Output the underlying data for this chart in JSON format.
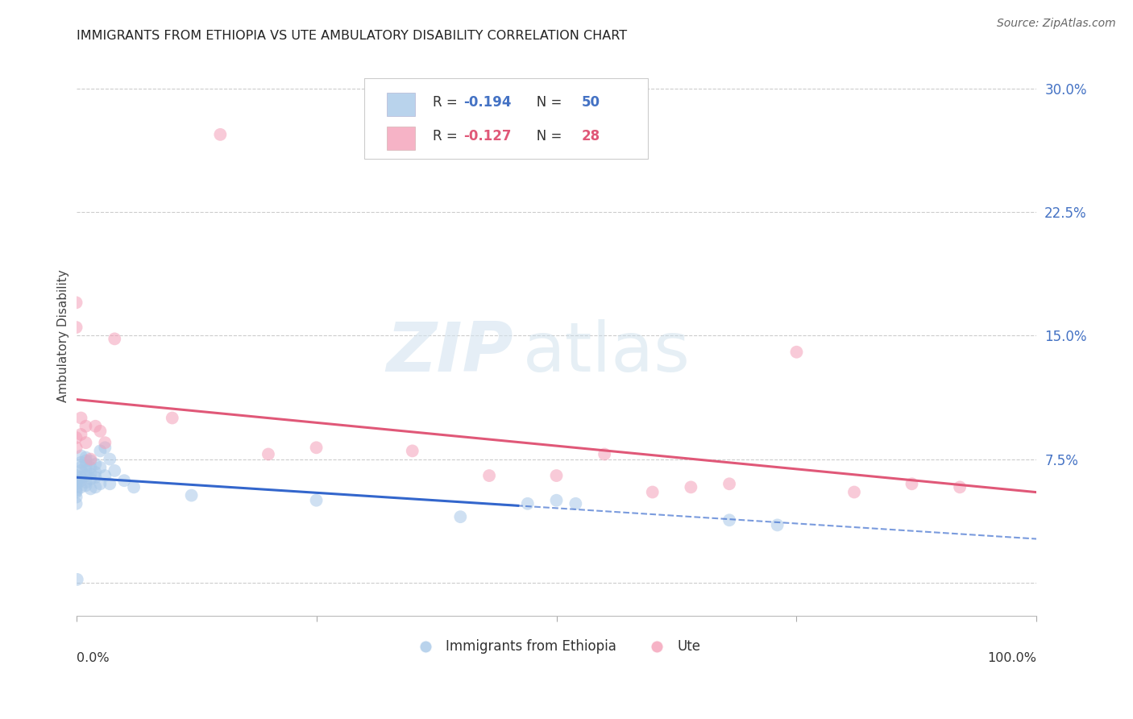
{
  "title": "IMMIGRANTS FROM ETHIOPIA VS UTE AMBULATORY DISABILITY CORRELATION CHART",
  "source": "Source: ZipAtlas.com",
  "ylabel": "Ambulatory Disability",
  "yticks": [
    0.0,
    0.075,
    0.15,
    0.225,
    0.3
  ],
  "ytick_labels": [
    "",
    "7.5%",
    "15.0%",
    "22.5%",
    "30.0%"
  ],
  "xlim": [
    0.0,
    1.0
  ],
  "ylim": [
    -0.02,
    0.32
  ],
  "blue_color": "#a8c8e8",
  "pink_color": "#f4a0b8",
  "blue_line_color": "#3366cc",
  "pink_line_color": "#e05878",
  "blue_scatter_x": [
    0.0,
    0.0,
    0.0,
    0.0,
    0.0,
    0.0,
    0.0,
    0.0,
    0.005,
    0.005,
    0.005,
    0.005,
    0.005,
    0.005,
    0.005,
    0.01,
    0.01,
    0.01,
    0.01,
    0.01,
    0.01,
    0.01,
    0.015,
    0.015,
    0.015,
    0.015,
    0.015,
    0.02,
    0.02,
    0.02,
    0.02,
    0.025,
    0.025,
    0.025,
    0.03,
    0.03,
    0.035,
    0.035,
    0.04,
    0.05,
    0.06,
    0.12,
    0.25,
    0.4,
    0.47,
    0.5,
    0.52,
    0.68,
    0.73,
    0.001
  ],
  "blue_scatter_y": [
    0.055,
    0.06,
    0.065,
    0.058,
    0.052,
    0.048,
    0.062,
    0.056,
    0.068,
    0.073,
    0.062,
    0.07,
    0.077,
    0.064,
    0.058,
    0.071,
    0.076,
    0.065,
    0.059,
    0.068,
    0.074,
    0.061,
    0.063,
    0.07,
    0.057,
    0.074,
    0.066,
    0.067,
    0.072,
    0.058,
    0.064,
    0.08,
    0.07,
    0.06,
    0.082,
    0.065,
    0.075,
    0.06,
    0.068,
    0.062,
    0.058,
    0.053,
    0.05,
    0.04,
    0.048,
    0.05,
    0.048,
    0.038,
    0.035,
    0.002
  ],
  "pink_scatter_x": [
    0.0,
    0.0,
    0.0,
    0.0,
    0.005,
    0.005,
    0.01,
    0.01,
    0.015,
    0.02,
    0.025,
    0.03,
    0.04,
    0.1,
    0.15,
    0.2,
    0.25,
    0.35,
    0.43,
    0.5,
    0.55,
    0.6,
    0.64,
    0.68,
    0.75,
    0.81,
    0.87,
    0.92
  ],
  "pink_scatter_y": [
    0.17,
    0.155,
    0.088,
    0.082,
    0.1,
    0.09,
    0.095,
    0.085,
    0.075,
    0.095,
    0.092,
    0.085,
    0.148,
    0.1,
    0.272,
    0.078,
    0.082,
    0.08,
    0.065,
    0.065,
    0.078,
    0.055,
    0.058,
    0.06,
    0.14,
    0.055,
    0.06,
    0.058
  ]
}
